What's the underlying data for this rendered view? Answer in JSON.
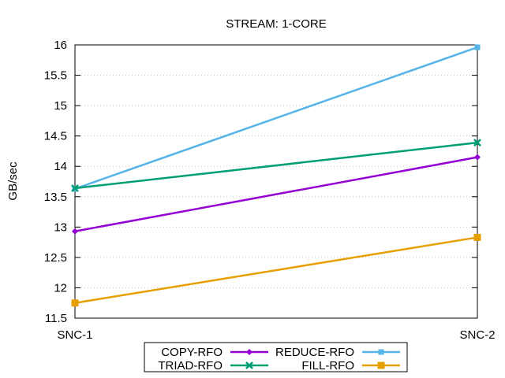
{
  "chart_data": {
    "type": "line",
    "title": "STREAM: 1-CORE",
    "xlabel": "",
    "ylabel": "GB/sec",
    "categories": [
      "SNC-1",
      "SNC-2"
    ],
    "ylim": [
      11.5,
      16
    ],
    "yticks": [
      "11.5",
      "12",
      "12.5",
      "13",
      "13.5",
      "14",
      "14.5",
      "15",
      "15.5",
      "16"
    ],
    "grid": true,
    "legend_position": "bottom-center",
    "series": [
      {
        "name": "COPY-RFO",
        "values": [
          12.93,
          14.15
        ],
        "color": "#9400d3",
        "marker": "diamond"
      },
      {
        "name": "REDUCE-RFO",
        "values": [
          13.63,
          15.96
        ],
        "color": "#56b4e9",
        "marker": "square-small"
      },
      {
        "name": "TRIAD-RFO",
        "values": [
          13.64,
          14.39
        ],
        "color": "#009e73",
        "marker": "cross"
      },
      {
        "name": "FILL-RFO",
        "values": [
          11.75,
          12.83
        ],
        "color": "#e69f00",
        "marker": "square"
      }
    ]
  }
}
